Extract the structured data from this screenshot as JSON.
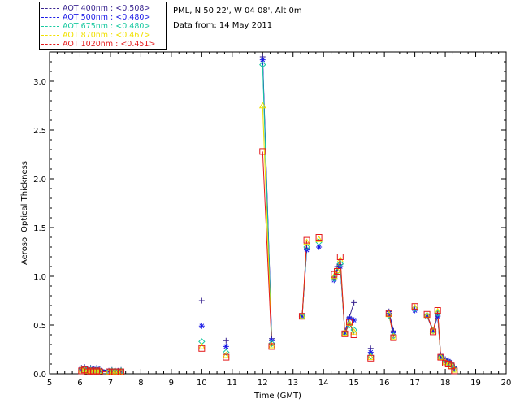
{
  "header": {
    "site": "PML, N 50 22', W 04 08', Alt 0m",
    "date": "Data from: 14 May 2011"
  },
  "legend": {
    "items": [
      {
        "label": "AOT  400nm : <0.508>",
        "color": "#3a2590"
      },
      {
        "label": "AOT  500nm : <0.480>",
        "color": "#1a1ae6"
      },
      {
        "label": "AOT  675nm : <0.480>",
        "color": "#18c9a0"
      },
      {
        "label": "AOT  870nm : <0.467>",
        "color": "#f0e000"
      },
      {
        "label": "AOT 1020nm : <0.451>",
        "color": "#e31a1c"
      }
    ]
  },
  "chart_data": {
    "type": "scatter",
    "xlabel": "Time (GMT)",
    "ylabel": "Aerosol Optical Thickness",
    "xlim": [
      5,
      20
    ],
    "ylim": [
      0,
      3.3
    ],
    "xticks": [
      "5",
      "6",
      "7",
      "8",
      "9",
      "10",
      "11",
      "12",
      "13",
      "14",
      "15",
      "16",
      "17",
      "18",
      "19",
      "20"
    ],
    "yticks": [
      "0.0",
      "0.5",
      "1.0",
      "1.5",
      "2.0",
      "2.5",
      "3.0"
    ],
    "x": [
      6.05,
      6.15,
      6.25,
      6.35,
      6.45,
      6.55,
      6.65,
      6.95,
      7.05,
      7.15,
      7.25,
      7.35,
      10.0,
      10.8,
      12.0,
      12.3,
      13.3,
      13.45,
      13.85,
      14.35,
      14.45,
      14.55,
      14.7,
      14.85,
      15.0,
      15.55,
      16.15,
      16.3,
      17.0,
      17.4,
      17.6,
      17.75,
      17.85,
      18.0,
      18.1,
      18.2,
      18.3
    ],
    "series": [
      {
        "name": "AOT  400nm : <0.508>",
        "marker": "plus",
        "color": "#3a2590",
        "values": [
          0.06,
          0.07,
          0.05,
          0.06,
          0.05,
          0.06,
          0.05,
          0.03,
          0.04,
          0.04,
          0.03,
          0.04,
          0.75,
          0.34,
          3.25,
          0.36,
          0.6,
          1.29,
          1.3,
          0.98,
          1.1,
          1.12,
          0.43,
          0.58,
          0.73,
          0.26,
          0.64,
          0.44,
          0.66,
          0.6,
          0.45,
          0.6,
          0.19,
          0.15,
          0.14,
          0.11,
          0.07
        ]
      },
      {
        "name": "AOT  500nm : <0.480>",
        "marker": "star",
        "color": "#1a1ae6",
        "values": [
          0.05,
          0.06,
          0.04,
          0.05,
          0.04,
          0.05,
          0.04,
          0.03,
          0.03,
          0.03,
          0.03,
          0.03,
          0.49,
          0.28,
          3.22,
          0.34,
          0.59,
          1.27,
          1.3,
          0.96,
          1.08,
          1.1,
          0.42,
          0.57,
          0.55,
          0.22,
          0.62,
          0.42,
          0.65,
          0.59,
          0.44,
          0.59,
          0.18,
          0.14,
          0.13,
          0.1,
          0.06
        ]
      },
      {
        "name": "AOT  675nm : <0.480>",
        "marker": "diamond",
        "color": "#18c9a0",
        "values": [
          0.04,
          0.05,
          0.03,
          0.04,
          0.03,
          0.04,
          0.03,
          0.02,
          0.03,
          0.03,
          0.02,
          0.03,
          0.33,
          0.22,
          3.17,
          0.31,
          0.59,
          1.3,
          1.35,
          0.98,
          1.05,
          1.13,
          0.42,
          0.5,
          0.45,
          0.18,
          0.6,
          0.39,
          0.67,
          0.6,
          0.44,
          0.62,
          0.17,
          0.12,
          0.11,
          0.09,
          0.05
        ]
      },
      {
        "name": "AOT  870nm : <0.467>",
        "marker": "triangle",
        "color": "#f0e000",
        "values": [
          0.04,
          0.04,
          0.03,
          0.03,
          0.03,
          0.03,
          0.03,
          0.02,
          0.02,
          0.02,
          0.02,
          0.02,
          0.28,
          0.19,
          2.75,
          0.29,
          0.59,
          1.35,
          1.38,
          1.0,
          1.06,
          1.17,
          0.42,
          0.52,
          0.43,
          0.17,
          0.61,
          0.38,
          0.68,
          0.6,
          0.44,
          0.64,
          0.17,
          0.12,
          0.1,
          0.08,
          0.04
        ]
      },
      {
        "name": "AOT 1020nm : <0.451>",
        "marker": "square",
        "color": "#e31a1c",
        "values": [
          0.03,
          0.04,
          0.02,
          0.03,
          0.02,
          0.03,
          0.02,
          0.02,
          0.02,
          0.02,
          0.02,
          0.02,
          0.26,
          0.17,
          2.28,
          0.28,
          0.59,
          1.37,
          1.4,
          1.02,
          1.05,
          1.2,
          0.41,
          0.53,
          0.4,
          0.16,
          0.62,
          0.37,
          0.69,
          0.61,
          0.43,
          0.65,
          0.17,
          0.11,
          0.1,
          0.08,
          0.03
        ]
      }
    ],
    "grid": false,
    "legend_position": "top-left"
  }
}
